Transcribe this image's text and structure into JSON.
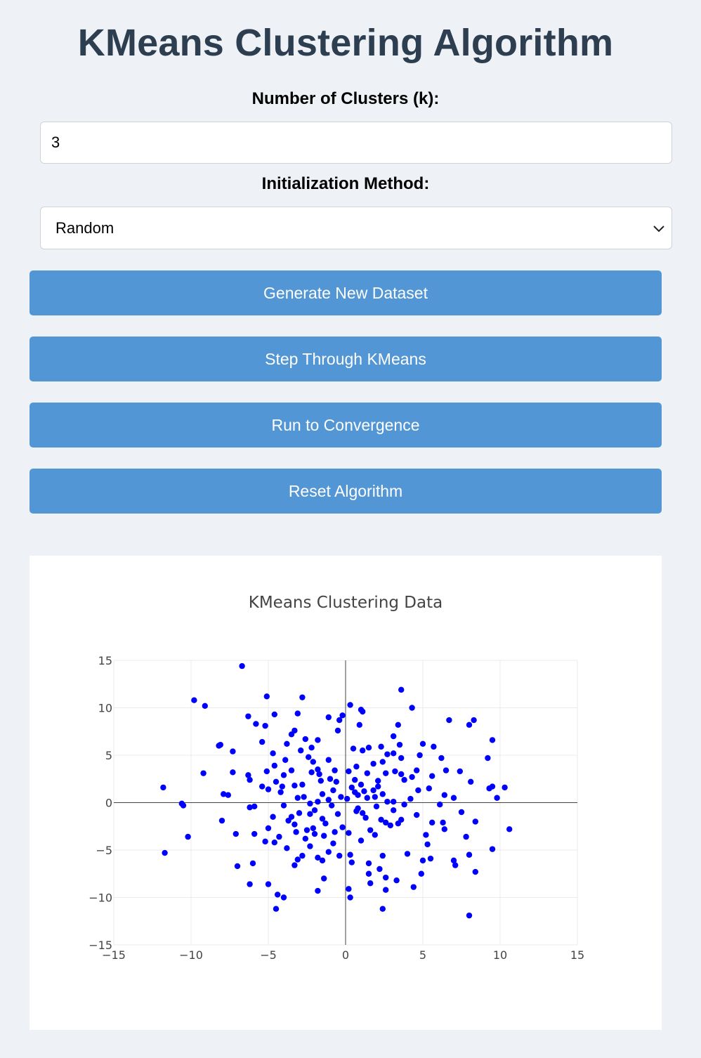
{
  "page": {
    "title": "KMeans Clustering Algorithm"
  },
  "form": {
    "k_label": "Number of Clusters (k):",
    "k_value": "3",
    "init_label": "Initialization Method:",
    "init_selected": "Random"
  },
  "buttons": {
    "generate": "Generate New Dataset",
    "step": "Step Through KMeans",
    "run": "Run to Convergence",
    "reset": "Reset Algorithm"
  },
  "colors": {
    "accent": "#5296d5",
    "title": "#2c3e50",
    "points": "#0000ff",
    "background": "#eef1f5"
  },
  "icons": {
    "select": "chevron-down-icon"
  },
  "chart_data": {
    "type": "scatter",
    "title": "KMeans Clustering Data",
    "xlim": [
      -15,
      15
    ],
    "ylim": [
      -15,
      15
    ],
    "xticks": [
      "−15",
      "−10",
      "−5",
      "0",
      "5",
      "10",
      "15"
    ],
    "yticks": [
      "15",
      "10",
      "5",
      "0",
      "−5",
      "−10",
      "−15"
    ],
    "grid": true,
    "zero_lines": true,
    "series": [
      {
        "color": "#0000ff",
        "points": [
          [
            -6.7,
            14.4
          ],
          [
            -9.8,
            10.8
          ],
          [
            -9.1,
            10.2
          ],
          [
            -5.1,
            11.2
          ],
          [
            -2.8,
            11.1
          ],
          [
            3.6,
            11.9
          ],
          [
            4.3,
            10
          ],
          [
            0.3,
            10.3
          ],
          [
            1,
            9.8
          ],
          [
            1.1,
            9.6
          ],
          [
            -6.3,
            9.1
          ],
          [
            -5.8,
            8.3
          ],
          [
            -5.2,
            8.1
          ],
          [
            -4.6,
            9.3
          ],
          [
            -3.1,
            9.4
          ],
          [
            -1.1,
            9
          ],
          [
            -0.2,
            9.2
          ],
          [
            -0.4,
            8.7
          ],
          [
            0.9,
            8.2
          ],
          [
            3.4,
            8.2
          ],
          [
            6.7,
            8.7
          ],
          [
            8.3,
            8.7
          ],
          [
            8,
            8.2
          ],
          [
            -8.1,
            6.1
          ],
          [
            -8.2,
            6
          ],
          [
            -7.3,
            5.4
          ],
          [
            -5.4,
            6.4
          ],
          [
            -4.7,
            5.2
          ],
          [
            -3.5,
            7.2
          ],
          [
            -3.3,
            7.6
          ],
          [
            -2.6,
            6.7
          ],
          [
            -1.8,
            6.6
          ],
          [
            -2.9,
            5.5
          ],
          [
            -2.4,
            4.8
          ],
          [
            -1.1,
            4.5
          ],
          [
            -0.5,
            7.6
          ],
          [
            0.5,
            5.7
          ],
          [
            1.1,
            5.5
          ],
          [
            1.5,
            5.8
          ],
          [
            2.3,
            5.9
          ],
          [
            3.1,
            5.2
          ],
          [
            3.1,
            7
          ],
          [
            3.5,
            6.1
          ],
          [
            5,
            6.2
          ],
          [
            5.7,
            5.9
          ],
          [
            6.2,
            4.7
          ],
          [
            9.5,
            6.6
          ],
          [
            9.2,
            4.7
          ],
          [
            -9.2,
            3.1
          ],
          [
            -7.3,
            3.2
          ],
          [
            -6.3,
            2.9
          ],
          [
            -6.2,
            2.4
          ],
          [
            -5.1,
            3.3
          ],
          [
            -4.5,
            2.2
          ],
          [
            -4,
            2.9
          ],
          [
            -3.5,
            3.4
          ],
          [
            -2.8,
            1.9
          ],
          [
            -2.2,
            3.2
          ],
          [
            -1.8,
            3.5
          ],
          [
            -1.6,
            2.3
          ],
          [
            -1,
            2.5
          ],
          [
            -0.7,
            3.4
          ],
          [
            0.2,
            3.3
          ],
          [
            0.6,
            2.4
          ],
          [
            1,
            1.9
          ],
          [
            1.4,
            3.1
          ],
          [
            2.1,
            2.3
          ],
          [
            2.6,
            3.1
          ],
          [
            3.2,
            3.3
          ],
          [
            3.8,
            2.4
          ],
          [
            4.3,
            2.7
          ],
          [
            4.6,
            3.4
          ],
          [
            5.6,
            2.8
          ],
          [
            6.5,
            3.4
          ],
          [
            7.4,
            3.3
          ],
          [
            8.1,
            2.2
          ],
          [
            9.3,
            1.5
          ],
          [
            9.5,
            1.7
          ],
          [
            10.3,
            1.6
          ],
          [
            9.8,
            0.5
          ],
          [
            -11.8,
            1.6
          ],
          [
            -7.9,
            0.9
          ],
          [
            -7.6,
            0.8
          ],
          [
            -6.2,
            -0.5
          ],
          [
            -5.4,
            1.7
          ],
          [
            -5,
            1.4
          ],
          [
            -4.2,
            1.1
          ],
          [
            -3.3,
            1.8
          ],
          [
            -2.7,
            0.6
          ],
          [
            -1.5,
            0.9
          ],
          [
            -0.8,
            1.3
          ],
          [
            0.1,
            0.4
          ],
          [
            0.8,
            0.8
          ],
          [
            1.4,
            0.5
          ],
          [
            1.9,
            0.6
          ],
          [
            2.4,
            0.9
          ],
          [
            3.1,
            0.1
          ],
          [
            3.8,
            -0.2
          ],
          [
            4.7,
            1.3
          ],
          [
            5.4,
            1.5
          ],
          [
            6.4,
            0.8
          ],
          [
            7,
            0.5
          ],
          [
            6.1,
            -0.2
          ],
          [
            -10.6,
            -0.1
          ],
          [
            -10.5,
            -0.3
          ],
          [
            -8,
            -1.9
          ],
          [
            -5.9,
            -0.4
          ],
          [
            -4,
            -0.3
          ],
          [
            -3.7,
            -1.9
          ],
          [
            -2.3,
            -1.2
          ],
          [
            -2,
            -0.8
          ],
          [
            -1.3,
            -2.2
          ],
          [
            -0.5,
            -1.2
          ],
          [
            -0.2,
            -2.6
          ],
          [
            0.7,
            -0.9
          ],
          [
            1.3,
            -1.6
          ],
          [
            2.3,
            -1.8
          ],
          [
            2.9,
            -2.4
          ],
          [
            3.6,
            -1.8
          ],
          [
            4.6,
            -1.3
          ],
          [
            5.6,
            -2.1
          ],
          [
            6.3,
            -2.1
          ],
          [
            7.5,
            -1
          ],
          [
            8.4,
            -2
          ],
          [
            10.6,
            -2.8
          ],
          [
            -10.2,
            -3.6
          ],
          [
            -7.1,
            -3.3
          ],
          [
            -5.9,
            -3.3
          ],
          [
            -5,
            -2.7
          ],
          [
            -4.3,
            -3.6
          ],
          [
            -3.3,
            -2.3
          ],
          [
            -3.2,
            -3.1
          ],
          [
            -2.6,
            -3.8
          ],
          [
            -2.1,
            -2.7
          ],
          [
            -1.4,
            -3.5
          ],
          [
            -0.7,
            -3.1
          ],
          [
            0.2,
            -3.2
          ],
          [
            1.6,
            -2.9
          ],
          [
            2.6,
            -2.1
          ],
          [
            3.4,
            -2.2
          ],
          [
            5.2,
            -3.4
          ],
          [
            6.4,
            -2.8
          ],
          [
            7.8,
            -3.6
          ],
          [
            -11.7,
            -5.3
          ],
          [
            -7,
            -6.7
          ],
          [
            -6,
            -6.4
          ],
          [
            -5.2,
            -4.1
          ],
          [
            -4.6,
            -4.2
          ],
          [
            -3.8,
            -4.8
          ],
          [
            -3.1,
            -6
          ],
          [
            -2.3,
            -4.6
          ],
          [
            -1.8,
            -5.8
          ],
          [
            -1.1,
            -5.2
          ],
          [
            -0.4,
            -5.6
          ],
          [
            0.3,
            -5.5
          ],
          [
            1,
            -4
          ],
          [
            2.4,
            -5.6
          ],
          [
            4,
            -5.4
          ],
          [
            5,
            -6.1
          ],
          [
            5.3,
            -4.4
          ],
          [
            7,
            -6.1
          ],
          [
            8,
            -5.5
          ],
          [
            9.5,
            -4.9
          ],
          [
            -6.2,
            -8.6
          ],
          [
            -5,
            -8.6
          ],
          [
            -4.4,
            -9.7
          ],
          [
            -4,
            -10
          ],
          [
            -4.5,
            -11.2
          ],
          [
            -1.8,
            -9.3
          ],
          [
            -1.4,
            -8
          ],
          [
            0.2,
            -9.1
          ],
          [
            0.3,
            -10
          ],
          [
            1.5,
            -7.5
          ],
          [
            1.6,
            -8.5
          ],
          [
            2.2,
            -7
          ],
          [
            2.6,
            -7.9
          ],
          [
            2.6,
            -9.2
          ],
          [
            3.3,
            -8.2
          ],
          [
            4.9,
            -7.5
          ],
          [
            2.4,
            -11.2
          ],
          [
            8,
            -11.9
          ],
          [
            8.4,
            -7.3
          ],
          [
            7.1,
            -6.6
          ],
          [
            5.5,
            -5.9
          ],
          [
            4.4,
            -8.9
          ],
          [
            1.5,
            -6.4
          ],
          [
            0.4,
            -6.3
          ],
          [
            -1.5,
            -6.1
          ],
          [
            -3.3,
            -6.6
          ],
          [
            -2.8,
            -5.6
          ],
          [
            -0.8,
            -4.3
          ],
          [
            0.8,
            -0.6
          ],
          [
            1.8,
            1.3
          ],
          [
            2.7,
            0.1
          ],
          [
            3.1,
            -0.8
          ],
          [
            4.2,
            0.4
          ],
          [
            -2.3,
            -0.1
          ],
          [
            -1.1,
            0.3
          ],
          [
            -3.1,
            0.5
          ],
          [
            -4.7,
            -1.5
          ],
          [
            -1.5,
            -1.7
          ],
          [
            -0.3,
            0.6
          ],
          [
            0.6,
            1.1
          ],
          [
            1.2,
            1.2
          ],
          [
            2,
            -0.4
          ],
          [
            3.6,
            3
          ],
          [
            2.4,
            4.3
          ],
          [
            1.8,
            4.1
          ],
          [
            0.7,
            3.8
          ],
          [
            -0.6,
            2.2
          ],
          [
            -2.1,
            4.3
          ],
          [
            -3.9,
            4.5
          ],
          [
            -4.6,
            3.9
          ],
          [
            -3.8,
            6.2
          ],
          [
            -2.2,
            5.8
          ],
          [
            -1.7,
            3
          ],
          [
            0.4,
            1.6
          ],
          [
            2.1,
            1.7
          ],
          [
            4.8,
            5
          ],
          [
            3.6,
            4.7
          ],
          [
            2.7,
            5.1
          ],
          [
            -4.1,
            1.7
          ],
          [
            -2.5,
            -2.9
          ],
          [
            -2,
            -3.3
          ],
          [
            -0.9,
            -0.3
          ],
          [
            1.1,
            -1.1
          ],
          [
            1.9,
            -3.4
          ],
          [
            -3.5,
            -1.5
          ],
          [
            -3,
            -1.1
          ],
          [
            -1.8,
            0.1
          ]
        ]
      }
    ]
  }
}
